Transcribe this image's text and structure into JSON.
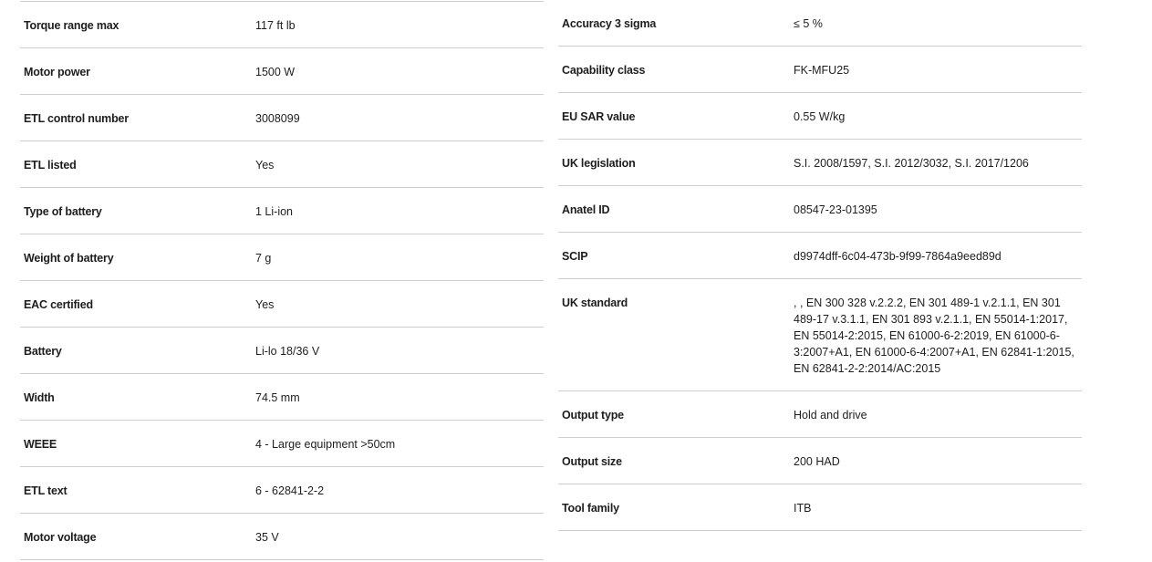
{
  "left_specs": [
    {
      "label": "Torque range max",
      "value": "117 ft lb"
    },
    {
      "label": "Motor power",
      "value": "1500 W"
    },
    {
      "label": "ETL control number",
      "value": "3008099"
    },
    {
      "label": "ETL listed",
      "value": "Yes"
    },
    {
      "label": "Type of battery",
      "value": "1 Li-ion"
    },
    {
      "label": "Weight of battery",
      "value": "7 g"
    },
    {
      "label": "EAC certified",
      "value": "Yes"
    },
    {
      "label": "Battery",
      "value": "Li-lo 18/36 V"
    },
    {
      "label": "Width",
      "value": "74.5 mm"
    },
    {
      "label": "WEEE",
      "value": "4 - Large equipment >50cm"
    },
    {
      "label": "ETL text",
      "value": "6 - 62841-2-2"
    },
    {
      "label": "Motor voltage",
      "value": "35 V"
    }
  ],
  "right_specs": [
    {
      "label": "Accuracy 3 sigma",
      "value": "≤ 5 %"
    },
    {
      "label": "Capability class",
      "value": "FK-MFU25"
    },
    {
      "label": "EU SAR value",
      "value": "0.55 W/kg"
    },
    {
      "label": "UK legislation",
      "value": "S.I. 2008/1597, S.I. 2012/3032, S.I. 2017/1206"
    },
    {
      "label": "Anatel ID",
      "value": "08547-23-01395"
    },
    {
      "label": "SCIP",
      "value": "d9974dff-6c04-473b-9f99-7864a9eed89d"
    },
    {
      "label": "UK standard",
      "value": ", , EN 300 328 v.2.2.2, EN 301 489-1 v.2.1.1, EN 301 489-17 v.3.1.1, EN 301 893 v.2.1.1, EN 55014-1:2017, EN 55014-2:2015, EN 61000-6-2:2019, EN 61000-6-3:2007+A1, EN 61000-6-4:2007+A1, EN 62841-1:2015, EN 62841-2-2:2014/AC:2015"
    },
    {
      "label": "Output type",
      "value": "Hold and drive"
    },
    {
      "label": "Output size",
      "value": "200 HAD"
    },
    {
      "label": "Tool family",
      "value": "ITB"
    }
  ]
}
